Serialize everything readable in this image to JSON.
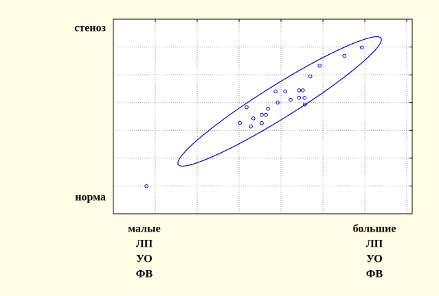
{
  "chart_data": {
    "type": "scatter",
    "y_end_labels": [
      "норма",
      "стеноз"
    ],
    "x_end_labels": [
      [
        "малые",
        "ЛП",
        "УО",
        "ФВ"
      ],
      [
        "большие",
        "ЛП",
        "УО",
        "ФВ"
      ]
    ],
    "x": [
      0.79,
      3.02,
      3.18,
      3.28,
      3.34,
      3.54,
      3.54,
      3.64,
      3.69,
      3.87,
      3.92,
      4.1,
      4.23,
      4.43,
      4.43,
      4.52,
      4.56,
      4.57,
      4.7,
      4.92,
      5.51,
      5.93
    ],
    "values": [
      0.99,
      3.26,
      3.83,
      3.14,
      3.43,
      3.56,
      3.26,
      3.56,
      3.78,
      4.4,
      4.0,
      4.4,
      4.1,
      4.44,
      4.17,
      4.44,
      4.17,
      3.93,
      4.94,
      5.33,
      5.68,
      5.98
    ],
    "color": "#0000c0",
    "xlim": [
      0,
      7.13
    ],
    "ylim": [
      0,
      7
    ],
    "xticks": [
      1,
      2,
      3,
      4,
      5,
      6,
      7
    ],
    "yticks": [
      1,
      2,
      3,
      4,
      5,
      6
    ],
    "grid": true
  }
}
